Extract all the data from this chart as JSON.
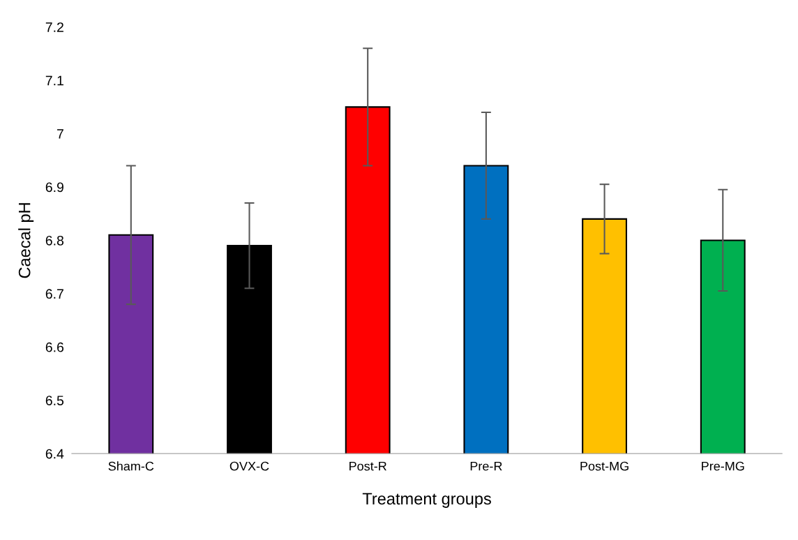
{
  "chart_data": {
    "type": "bar",
    "xlabel": "Treatment groups",
    "ylabel": "Caecal pH",
    "categories": [
      "Sham-C",
      "OVX-C",
      "Post-R",
      "Pre-R",
      "Post-MG",
      "Pre-MG"
    ],
    "values": [
      6.81,
      6.79,
      7.05,
      6.94,
      6.84,
      6.8
    ],
    "errors": [
      0.13,
      0.08,
      0.11,
      0.1,
      0.065,
      0.095
    ],
    "colors": [
      "#7030a0",
      "#000000",
      "#ff0000",
      "#0070c0",
      "#ffc000",
      "#00b050"
    ],
    "ylim": [
      6.4,
      7.2
    ],
    "yticks": [
      6.4,
      6.5,
      6.6,
      6.7,
      6.8,
      6.9,
      {
        "value": 7.0,
        "label": "7"
      },
      7.1,
      7.2
    ],
    "grid": false,
    "legend": false
  }
}
